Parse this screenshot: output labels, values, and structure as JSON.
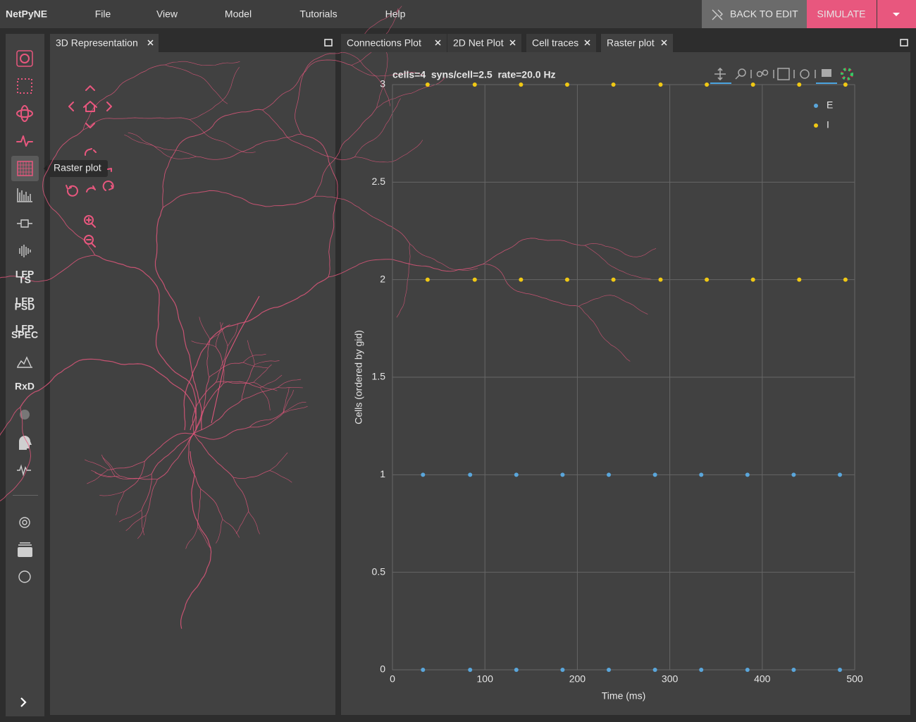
{
  "header": {
    "brand": "NetPyNE",
    "menu": [
      "File",
      "View",
      "Model",
      "Tutorials",
      "Help"
    ],
    "back_to_edit": "BACK TO EDIT",
    "simulate": "SIMULATE"
  },
  "sidebar": {
    "icon_labels": [
      [
        "LFP",
        "TS"
      ],
      [
        "LFP",
        "PSD"
      ],
      [
        "LFP",
        "SPEC"
      ],
      [
        "RxD"
      ]
    ],
    "tooltip": "Raster plot"
  },
  "left_panel": {
    "tab": "3D Representation"
  },
  "right_panel": {
    "tabs": [
      "Connections Plot",
      "2D Net Plot",
      "Cell traces",
      "Raster plot"
    ],
    "active_tab": 3
  },
  "chart_data": {
    "type": "scatter",
    "title": "cells=4  syns/cell=2.5  rate=20.0 Hz",
    "xlabel": "Time (ms)",
    "ylabel": "Cells (ordered by gid)",
    "xlim": [
      0,
      500
    ],
    "ylim": [
      0,
      3
    ],
    "xticks": [
      0,
      100,
      200,
      300,
      400,
      500
    ],
    "yticks": [
      0,
      0.5,
      1,
      1.5,
      2,
      2.5,
      3
    ],
    "grid": true,
    "legend": "top-right",
    "series": [
      {
        "name": "E",
        "color": "#5aa6db",
        "x": [
          33,
          84,
          134,
          184,
          234,
          284,
          334,
          384,
          434,
          484,
          33,
          84,
          134,
          184,
          234,
          284,
          334,
          384,
          434,
          484
        ],
        "values": [
          0,
          0,
          0,
          0,
          0,
          0,
          0,
          0,
          0,
          0,
          1,
          1,
          1,
          1,
          1,
          1,
          1,
          1,
          1,
          1
        ]
      },
      {
        "name": "I",
        "color": "#f0c814",
        "x": [
          38,
          89,
          139,
          189,
          239,
          290,
          340,
          390,
          440,
          490,
          38,
          89,
          139,
          189,
          239,
          290,
          340,
          390,
          440,
          490
        ],
        "values": [
          2,
          2,
          2,
          2,
          2,
          2,
          2,
          2,
          2,
          2,
          3,
          3,
          3,
          3,
          3,
          3,
          3,
          3,
          3,
          3
        ]
      }
    ]
  }
}
